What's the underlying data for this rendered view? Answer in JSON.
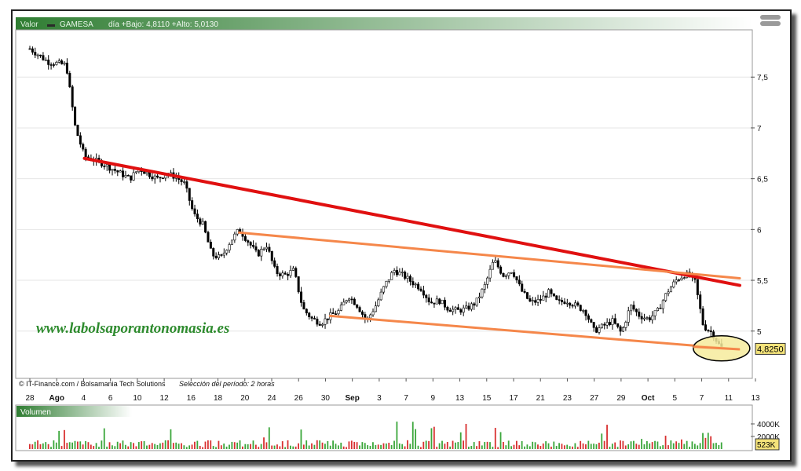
{
  "header": {
    "valor_label": "Valor",
    "ticker": "GAMESA",
    "range_text": "día +Bajo: 4,8110 +Alto: 5,0130"
  },
  "watermark": "www.labolsaporantonomasia.es",
  "credits": {
    "source": "© IT-Finance.com / Bolsamania Tech Solutions",
    "period": "Selección del período: 2 horas"
  },
  "volume_panel": {
    "label": "Volumen",
    "current_label": "523K"
  },
  "last_price_label": "4,8250",
  "colors": {
    "main_trendline": "#e01010",
    "channel_lines": "#f5874a",
    "highlight_fill": "#f6eb9c",
    "header_green": "#2f7d32",
    "volume_up": "#3aa63a",
    "volume_down": "#d83030"
  },
  "chart_data": [
    {
      "type": "line",
      "series_style": "candlestick (2-hour bars)",
      "ylim": [
        4.55,
        7.95
      ],
      "y_ticks": [
        "7,5",
        "7",
        "6,5",
        "6",
        "5,5",
        "5"
      ],
      "x_ticks": [
        "28",
        "Ago",
        "4",
        "6",
        "10",
        "12",
        "16",
        "18",
        "20",
        "24",
        "26",
        "30",
        "Sep",
        "3",
        "7",
        "9",
        "13",
        "15",
        "17",
        "21",
        "23",
        "27",
        "29",
        "Oct",
        "5",
        "7",
        "11",
        "13"
      ],
      "x_range_days": [
        0,
        78
      ],
      "last_price": 4.825,
      "close_path": [
        [
          0,
          7.78
        ],
        [
          2,
          7.65
        ],
        [
          4,
          7.62
        ],
        [
          5,
          7.0
        ],
        [
          6,
          6.72
        ],
        [
          8,
          6.65
        ],
        [
          10,
          6.55
        ],
        [
          11,
          6.5
        ],
        [
          12,
          6.6
        ],
        [
          13,
          6.55
        ],
        [
          14,
          6.5
        ],
        [
          15,
          6.55
        ],
        [
          16,
          6.52
        ],
        [
          17,
          6.45
        ],
        [
          18,
          6.15
        ],
        [
          19,
          6.05
        ],
        [
          20,
          5.75
        ],
        [
          21,
          5.72
        ],
        [
          22,
          5.88
        ],
        [
          23,
          6.0
        ],
        [
          24,
          5.88
        ],
        [
          25,
          5.75
        ],
        [
          26,
          5.85
        ],
        [
          27,
          5.58
        ],
        [
          28,
          5.55
        ],
        [
          29,
          5.6
        ],
        [
          30,
          5.22
        ],
        [
          31,
          5.12
        ],
        [
          32,
          5.08
        ],
        [
          33,
          5.15
        ],
        [
          34,
          5.2
        ],
        [
          35,
          5.35
        ],
        [
          36,
          5.25
        ],
        [
          37,
          5.1
        ],
        [
          38,
          5.25
        ],
        [
          39,
          5.45
        ],
        [
          40,
          5.6
        ],
        [
          41,
          5.55
        ],
        [
          42,
          5.48
        ],
        [
          43,
          5.42
        ],
        [
          44,
          5.28
        ],
        [
          45,
          5.3
        ],
        [
          46,
          5.22
        ],
        [
          47,
          5.2
        ],
        [
          48,
          5.22
        ],
        [
          49,
          5.28
        ],
        [
          50,
          5.45
        ],
        [
          51,
          5.7
        ],
        [
          52,
          5.55
        ],
        [
          53,
          5.6
        ],
        [
          54,
          5.4
        ],
        [
          55,
          5.28
        ],
        [
          56,
          5.3
        ],
        [
          57,
          5.38
        ],
        [
          58,
          5.28
        ],
        [
          59,
          5.3
        ],
        [
          60,
          5.25
        ],
        [
          61,
          5.2
        ],
        [
          62,
          5.0
        ],
        [
          63,
          5.05
        ],
        [
          64,
          5.1
        ],
        [
          65,
          4.98
        ],
        [
          66,
          5.25
        ],
        [
          67,
          5.15
        ],
        [
          68,
          5.12
        ],
        [
          69,
          5.2
        ],
        [
          70,
          5.38
        ],
        [
          71,
          5.5
        ],
        [
          72,
          5.56
        ],
        [
          73,
          5.52
        ],
        [
          74,
          5.05
        ],
        [
          75,
          4.98
        ],
        [
          76,
          4.82
        ]
      ],
      "trendlines": [
        {
          "role": "main-resistance",
          "from": [
            6,
            6.7
          ],
          "to": [
            78,
            5.45
          ]
        },
        {
          "role": "channel-top",
          "from": [
            23,
            5.97
          ],
          "to": [
            78,
            5.52
          ]
        },
        {
          "role": "channel-bottom",
          "from": [
            33,
            5.15
          ],
          "to": [
            78,
            4.82
          ]
        }
      ],
      "highlight": {
        "center": [
          76,
          4.83
        ]
      }
    },
    {
      "type": "bar",
      "name": "Volumen",
      "y_ticks": [
        "4000K",
        "2000K"
      ],
      "ylim": [
        0,
        5000
      ]
    }
  ]
}
